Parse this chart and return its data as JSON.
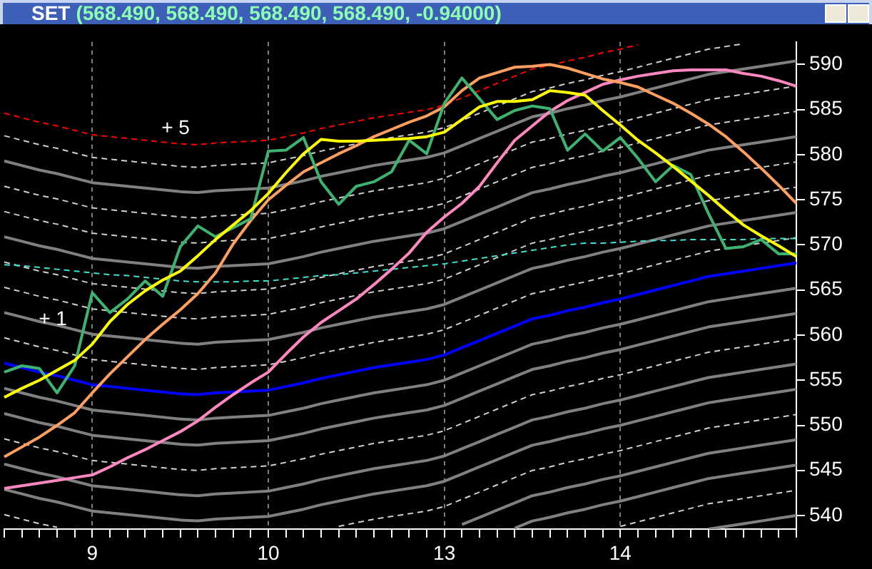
{
  "chart_data": {
    "type": "line",
    "title": "SET",
    "subtitle": "(568.490, 568.490, 568.490, 568.490, -0.94000)",
    "categories": [
      null,
      null,
      null,
      null,
      null,
      "9",
      null,
      null,
      null,
      null,
      null,
      null,
      null,
      null,
      null,
      "10",
      null,
      null,
      null,
      null,
      null,
      null,
      null,
      null,
      null,
      "13",
      null,
      null,
      null,
      null,
      null,
      null,
      null,
      null,
      null,
      "14",
      null,
      null,
      null,
      null,
      null,
      null,
      null,
      null,
      null,
      null
    ],
    "ylim": [
      538.5,
      592.5
    ],
    "yticks": [
      540,
      545,
      550,
      555,
      560,
      565,
      570,
      575,
      580,
      585,
      590
    ],
    "grid": "x",
    "legend": false,
    "annotations": [
      {
        "text": "+ 5",
        "y": 581.5
      },
      {
        "text": "+ 1",
        "y": 560.3
      }
    ],
    "series": [
      {
        "color": "#ff0000",
        "line_style": "dashed",
        "values": [
          584.6,
          584.1,
          583.6,
          583.2,
          582.7,
          582.2,
          582.0,
          581.8,
          581.6,
          581.4,
          581.2,
          581.1,
          581.3,
          581.4,
          581.5,
          581.6,
          582.0,
          582.4,
          582.9,
          583.3,
          583.7,
          584.1,
          584.4,
          584.7,
          585.0,
          585.5,
          586.3,
          587.1,
          587.9,
          588.7,
          589.5,
          589.9,
          590.4,
          590.8,
          591.3,
          591.7,
          592.2,
          null,
          null,
          null,
          null,
          null,
          null,
          null,
          null,
          null
        ]
      },
      {
        "color": "#d0d0d0",
        "line_style": "dashed",
        "values": [
          582.1,
          581.6,
          581.1,
          580.7,
          580.2,
          579.7,
          579.5,
          579.3,
          579.1,
          578.9,
          578.7,
          578.6,
          578.8,
          578.9,
          579.0,
          579.1,
          579.5,
          579.9,
          580.4,
          580.8,
          581.2,
          581.6,
          581.9,
          582.2,
          582.5,
          583.0,
          583.8,
          584.6,
          585.4,
          586.2,
          587.0,
          587.4,
          587.9,
          588.3,
          588.8,
          589.2,
          589.7,
          590.2,
          590.7,
          591.2,
          591.7,
          592.0,
          592.3,
          null,
          null,
          null
        ]
      },
      {
        "color": "#808080",
        "line_style": "solid",
        "values": [
          579.3,
          578.8,
          578.3,
          577.9,
          577.4,
          576.9,
          576.7,
          576.5,
          576.3,
          576.1,
          575.9,
          575.8,
          576.0,
          576.1,
          576.2,
          576.3,
          576.7,
          577.1,
          577.6,
          578.0,
          578.4,
          578.8,
          579.1,
          579.4,
          579.7,
          580.2,
          581.0,
          581.8,
          582.6,
          583.4,
          584.2,
          584.6,
          585.1,
          585.5,
          586.0,
          586.4,
          586.9,
          587.4,
          587.9,
          588.4,
          588.9,
          589.2,
          589.5,
          589.8,
          590.1,
          590.4
        ]
      },
      {
        "color": "#d0d0d0",
        "line_style": "dashed",
        "values": [
          576.5,
          576.0,
          575.5,
          575.1,
          574.6,
          574.1,
          573.9,
          573.7,
          573.5,
          573.3,
          573.1,
          573.0,
          573.2,
          573.3,
          573.4,
          573.5,
          573.9,
          574.3,
          574.8,
          575.2,
          575.6,
          576.0,
          576.3,
          576.6,
          576.9,
          577.4,
          578.2,
          579.0,
          579.8,
          580.6,
          581.4,
          581.8,
          582.3,
          582.7,
          583.2,
          583.6,
          584.1,
          584.6,
          585.1,
          585.6,
          586.1,
          586.4,
          586.7,
          587.0,
          587.3,
          587.6
        ]
      },
      {
        "color": "#d0d0d0",
        "line_style": "dashed",
        "values": [
          573.7,
          573.2,
          572.7,
          572.3,
          571.8,
          571.3,
          571.1,
          570.9,
          570.7,
          570.5,
          570.3,
          570.2,
          570.4,
          570.5,
          570.6,
          570.7,
          571.1,
          571.5,
          572.0,
          572.4,
          572.8,
          573.2,
          573.5,
          573.8,
          574.1,
          574.6,
          575.4,
          576.2,
          577.0,
          577.8,
          578.6,
          579.0,
          579.5,
          579.9,
          580.4,
          580.8,
          581.3,
          581.8,
          582.3,
          582.8,
          583.3,
          583.6,
          583.9,
          584.2,
          584.5,
          584.8
        ]
      },
      {
        "color": "#808080",
        "line_style": "solid",
        "values": [
          570.9,
          570.4,
          569.9,
          569.5,
          569.0,
          568.5,
          568.3,
          568.1,
          567.9,
          567.7,
          567.5,
          567.4,
          567.6,
          567.7,
          567.8,
          567.9,
          568.3,
          568.7,
          569.2,
          569.6,
          570.0,
          570.4,
          570.7,
          571.0,
          571.3,
          571.8,
          572.6,
          573.4,
          574.2,
          575.0,
          575.8,
          576.2,
          576.7,
          577.1,
          577.6,
          578.0,
          578.5,
          579.0,
          579.5,
          580.0,
          580.5,
          580.8,
          581.1,
          581.4,
          581.7,
          582.0
        ]
      },
      {
        "color": "#d0d0d0",
        "line_style": "dashed",
        "values": [
          568.1,
          567.6,
          567.1,
          566.7,
          566.2,
          565.7,
          565.5,
          565.3,
          565.1,
          564.9,
          564.7,
          564.6,
          564.8,
          564.9,
          565.0,
          565.1,
          565.5,
          565.9,
          566.4,
          566.8,
          567.2,
          567.6,
          567.9,
          568.2,
          568.5,
          569.0,
          569.8,
          570.6,
          571.4,
          572.2,
          573.0,
          573.4,
          573.9,
          574.3,
          574.8,
          575.2,
          575.7,
          576.2,
          576.7,
          577.2,
          577.7,
          578.0,
          578.3,
          578.6,
          578.9,
          579.2
        ]
      },
      {
        "color": "#d0d0d0",
        "line_style": "dashed",
        "values": [
          565.3,
          564.8,
          564.3,
          563.9,
          563.4,
          562.9,
          562.7,
          562.5,
          562.3,
          562.1,
          561.9,
          561.8,
          562.0,
          562.1,
          562.2,
          562.3,
          562.7,
          563.1,
          563.6,
          564.0,
          564.4,
          564.8,
          565.1,
          565.4,
          565.7,
          566.2,
          567.0,
          567.8,
          568.6,
          569.4,
          570.2,
          570.6,
          571.1,
          571.5,
          572.0,
          572.4,
          572.9,
          573.4,
          573.9,
          574.4,
          574.9,
          575.2,
          575.5,
          575.8,
          576.1,
          576.4
        ]
      },
      {
        "color": "#808080",
        "line_style": "solid",
        "values": [
          562.5,
          562.0,
          561.5,
          561.1,
          560.6,
          560.1,
          559.9,
          559.7,
          559.5,
          559.3,
          559.1,
          559.0,
          559.2,
          559.3,
          559.4,
          559.5,
          559.9,
          560.3,
          560.8,
          561.2,
          561.6,
          562.0,
          562.3,
          562.6,
          562.9,
          563.4,
          564.2,
          565.0,
          565.8,
          566.6,
          567.4,
          567.8,
          568.3,
          568.7,
          569.2,
          569.6,
          570.1,
          570.6,
          571.1,
          571.6,
          572.1,
          572.4,
          572.7,
          573.0,
          573.3,
          573.6
        ]
      },
      {
        "color": "#d0d0d0",
        "line_style": "dashed",
        "values": [
          559.7,
          559.2,
          558.7,
          558.3,
          557.8,
          557.3,
          557.1,
          556.9,
          556.7,
          556.5,
          556.3,
          556.2,
          556.4,
          556.5,
          556.6,
          556.7,
          557.1,
          557.5,
          558.0,
          558.4,
          558.8,
          559.2,
          559.5,
          559.8,
          560.1,
          560.6,
          561.4,
          562.2,
          563.0,
          563.8,
          564.6,
          565.0,
          565.5,
          565.9,
          566.4,
          566.8,
          567.3,
          567.8,
          568.3,
          568.8,
          569.3,
          569.6,
          569.9,
          570.2,
          570.5,
          570.8
        ]
      },
      {
        "color": "#808080",
        "line_style": "solid",
        "values": [
          554.1,
          553.6,
          553.1,
          552.7,
          552.2,
          551.7,
          551.5,
          551.3,
          551.1,
          550.9,
          550.7,
          550.6,
          550.8,
          550.9,
          551.0,
          551.1,
          551.5,
          551.9,
          552.4,
          552.8,
          553.2,
          553.6,
          553.9,
          554.2,
          554.5,
          555.0,
          555.8,
          556.6,
          557.4,
          558.2,
          559.0,
          559.4,
          559.9,
          560.3,
          560.8,
          561.2,
          561.7,
          562.2,
          562.7,
          563.2,
          563.7,
          564.0,
          564.3,
          564.6,
          564.9,
          565.2
        ]
      },
      {
        "color": "#808080",
        "line_style": "solid",
        "values": [
          551.3,
          550.8,
          550.3,
          549.9,
          549.4,
          548.9,
          548.7,
          548.5,
          548.3,
          548.1,
          547.9,
          547.8,
          548.0,
          548.1,
          548.2,
          548.3,
          548.7,
          549.1,
          549.6,
          550.0,
          550.4,
          550.8,
          551.1,
          551.4,
          551.7,
          552.2,
          553.0,
          553.8,
          554.6,
          555.4,
          556.2,
          556.6,
          557.1,
          557.5,
          558.0,
          558.4,
          558.9,
          559.4,
          559.9,
          560.4,
          560.9,
          561.2,
          561.5,
          561.8,
          562.1,
          562.4
        ]
      },
      {
        "color": "#d0d0d0",
        "line_style": "dashed",
        "values": [
          548.5,
          548.0,
          547.5,
          547.1,
          546.6,
          546.1,
          545.9,
          545.7,
          545.5,
          545.3,
          545.1,
          545.0,
          545.2,
          545.3,
          545.4,
          545.5,
          545.9,
          546.3,
          546.8,
          547.2,
          547.6,
          548.0,
          548.3,
          548.6,
          548.9,
          549.4,
          550.2,
          551.0,
          551.8,
          552.6,
          553.4,
          553.8,
          554.3,
          554.7,
          555.2,
          555.6,
          556.1,
          556.6,
          557.1,
          557.6,
          558.1,
          558.4,
          558.7,
          559.0,
          559.3,
          559.6
        ]
      },
      {
        "color": "#808080",
        "line_style": "solid",
        "values": [
          545.7,
          545.2,
          544.7,
          544.3,
          543.8,
          543.3,
          543.1,
          542.9,
          542.7,
          542.5,
          542.3,
          542.2,
          542.4,
          542.5,
          542.6,
          542.7,
          543.1,
          543.5,
          544.0,
          544.4,
          544.8,
          545.2,
          545.5,
          545.8,
          546.1,
          546.6,
          547.4,
          548.2,
          549.0,
          549.8,
          550.6,
          551.0,
          551.5,
          551.9,
          552.4,
          552.8,
          553.3,
          553.8,
          554.3,
          554.8,
          555.3,
          555.6,
          555.9,
          556.2,
          556.5,
          556.8
        ]
      },
      {
        "color": "#808080",
        "line_style": "solid",
        "values": [
          542.9,
          542.4,
          541.9,
          541.5,
          541.0,
          540.5,
          540.3,
          540.1,
          539.9,
          539.7,
          539.5,
          539.4,
          539.6,
          539.7,
          539.8,
          539.9,
          540.3,
          540.7,
          541.2,
          541.6,
          542.0,
          542.4,
          542.7,
          543.0,
          543.3,
          543.8,
          544.6,
          545.4,
          546.2,
          547.0,
          547.8,
          548.2,
          548.7,
          549.1,
          549.6,
          550.0,
          550.5,
          551.0,
          551.5,
          552.0,
          552.5,
          552.8,
          553.1,
          553.4,
          553.7,
          554.0
        ]
      },
      {
        "color": "#d0d0d0",
        "line_style": "dashed",
        "values": [
          540.1,
          539.6,
          539.1,
          538.7,
          null,
          null,
          null,
          null,
          null,
          null,
          null,
          null,
          null,
          null,
          null,
          null,
          null,
          null,
          null,
          538.8,
          539.2,
          539.6,
          539.9,
          540.2,
          540.5,
          541.0,
          541.8,
          542.6,
          543.4,
          544.2,
          545.0,
          545.4,
          545.9,
          546.3,
          546.8,
          547.2,
          547.7,
          548.2,
          548.7,
          549.2,
          549.7,
          550.0,
          550.3,
          550.6,
          550.9,
          551.2
        ]
      },
      {
        "color": "#808080",
        "line_style": "solid",
        "values": [
          null,
          null,
          null,
          null,
          null,
          null,
          null,
          null,
          null,
          null,
          null,
          null,
          null,
          null,
          null,
          null,
          null,
          null,
          null,
          null,
          null,
          null,
          null,
          null,
          null,
          null,
          539.0,
          539.8,
          540.6,
          541.4,
          542.2,
          542.6,
          543.1,
          543.5,
          544.0,
          544.4,
          544.9,
          545.4,
          545.9,
          546.4,
          546.9,
          547.2,
          547.5,
          547.8,
          548.1,
          548.4
        ]
      },
      {
        "color": "#808080",
        "line_style": "solid",
        "values": [
          null,
          null,
          null,
          null,
          null,
          null,
          null,
          null,
          null,
          null,
          null,
          null,
          null,
          null,
          null,
          null,
          null,
          null,
          null,
          null,
          null,
          null,
          null,
          null,
          null,
          null,
          null,
          null,
          null,
          538.6,
          539.4,
          539.8,
          540.3,
          540.7,
          541.2,
          541.6,
          542.1,
          542.6,
          543.1,
          543.6,
          544.1,
          544.4,
          544.7,
          545.0,
          545.3,
          545.6
        ]
      },
      {
        "color": "#d0d0d0",
        "line_style": "dashed",
        "values": [
          null,
          null,
          null,
          null,
          null,
          null,
          null,
          null,
          null,
          null,
          null,
          null,
          null,
          null,
          null,
          null,
          null,
          null,
          null,
          null,
          null,
          null,
          null,
          null,
          null,
          null,
          null,
          null,
          null,
          null,
          null,
          null,
          null,
          null,
          null,
          538.8,
          539.3,
          539.8,
          540.3,
          540.8,
          541.3,
          541.6,
          541.9,
          542.2,
          542.5,
          542.8
        ]
      },
      {
        "color": "#808080",
        "line_style": "solid",
        "values": [
          null,
          null,
          null,
          null,
          null,
          null,
          null,
          null,
          null,
          null,
          null,
          null,
          null,
          null,
          null,
          null,
          null,
          null,
          null,
          null,
          null,
          null,
          null,
          null,
          null,
          null,
          null,
          null,
          null,
          null,
          null,
          null,
          null,
          null,
          null,
          null,
          null,
          null,
          null,
          null,
          538.5,
          538.8,
          539.1,
          539.4,
          539.7,
          540.0
        ]
      },
      {
        "color": "#40e0d0",
        "line_style": "dashed",
        "values": [
          567.8,
          567.7,
          567.5,
          567.3,
          567.1,
          566.9,
          566.7,
          566.6,
          566.4,
          566.2,
          566.0,
          565.9,
          565.9,
          565.9,
          566.0,
          566.0,
          566.2,
          566.4,
          566.6,
          566.7,
          566.9,
          567.1,
          567.3,
          567.5,
          567.7,
          567.9,
          568.2,
          568.5,
          568.8,
          569.1,
          569.4,
          569.7,
          570.0,
          570.2,
          570.2,
          570.3,
          570.4,
          570.5,
          570.5,
          570.6,
          570.6,
          570.6,
          570.6,
          570.7,
          570.7,
          570.7
        ]
      },
      {
        "color": "#0000ff",
        "line_style": "solid",
        "values": [
          556.9,
          556.4,
          555.9,
          555.5,
          555.0,
          554.5,
          554.3,
          554.1,
          553.9,
          553.7,
          553.5,
          553.4,
          553.6,
          553.7,
          553.8,
          553.9,
          554.3,
          554.7,
          555.2,
          555.6,
          556.0,
          556.4,
          556.7,
          557.0,
          557.3,
          557.8,
          558.6,
          559.4,
          560.2,
          561.0,
          561.8,
          562.2,
          562.7,
          563.1,
          563.6,
          564.0,
          564.5,
          565.0,
          565.5,
          566.0,
          566.5,
          566.8,
          567.1,
          567.4,
          567.7,
          568.0
        ]
      },
      {
        "color": "#ff88c0",
        "line_style": "solid",
        "values": [
          543.0,
          543.3,
          543.6,
          543.9,
          544.2,
          544.5,
          545.4,
          546.4,
          547.3,
          548.3,
          549.3,
          550.5,
          552.0,
          553.4,
          554.7,
          555.9,
          557.9,
          559.8,
          561.4,
          562.7,
          564.0,
          565.6,
          567.3,
          569.1,
          571.4,
          573.1,
          574.6,
          576.5,
          579.1,
          581.6,
          583.2,
          584.8,
          586.0,
          586.9,
          587.8,
          588.3,
          588.7,
          589.0,
          589.3,
          589.4,
          589.4,
          589.4,
          589.0,
          588.7,
          588.2,
          587.6
        ]
      },
      {
        "color": "#ffa060",
        "line_style": "solid",
        "values": [
          546.5,
          547.6,
          548.7,
          550.0,
          551.4,
          553.6,
          555.7,
          557.6,
          559.5,
          561.2,
          562.8,
          564.6,
          566.9,
          570.1,
          572.7,
          575.0,
          576.6,
          578.1,
          579.1,
          580.1,
          581.0,
          582.0,
          582.8,
          583.6,
          584.3,
          585.3,
          587.1,
          588.5,
          589.1,
          589.7,
          589.8,
          590.0,
          589.6,
          589.0,
          588.4,
          588.0,
          587.5,
          586.6,
          585.7,
          584.6,
          583.4,
          582.0,
          580.3,
          578.5,
          576.6,
          574.6
        ]
      },
      {
        "color": "#3cb371",
        "line_style": "solid",
        "values": [
          555.9,
          556.6,
          556.3,
          553.6,
          556.6,
          564.7,
          562.5,
          564.0,
          566.0,
          564.3,
          569.8,
          572.1,
          570.9,
          571.9,
          572.9,
          580.4,
          580.5,
          581.9,
          577.0,
          574.5,
          576.5,
          577.0,
          578.1,
          581.6,
          580.1,
          585.7,
          588.5,
          586.2,
          583.9,
          584.9,
          585.4,
          585.1,
          580.5,
          582.3,
          580.4,
          581.9,
          579.6,
          577.0,
          578.8,
          577.8,
          573.5,
          569.6,
          569.8,
          570.6,
          569.0,
          569.0
        ]
      },
      {
        "color": "#ffff00",
        "line_style": "solid",
        "values": [
          553.1,
          554.1,
          555.0,
          556.1,
          557.2,
          559.0,
          561.5,
          563.4,
          564.9,
          566.1,
          567.1,
          568.8,
          570.6,
          572.2,
          573.8,
          575.7,
          578.0,
          580.1,
          581.7,
          581.5,
          581.5,
          581.6,
          581.7,
          581.8,
          582.0,
          582.5,
          583.9,
          585.3,
          585.9,
          585.9,
          586.1,
          587.1,
          586.9,
          586.6,
          584.9,
          583.3,
          581.6,
          580.2,
          578.7,
          577.1,
          575.5,
          573.8,
          572.2,
          571.0,
          569.9,
          568.7
        ]
      }
    ]
  }
}
